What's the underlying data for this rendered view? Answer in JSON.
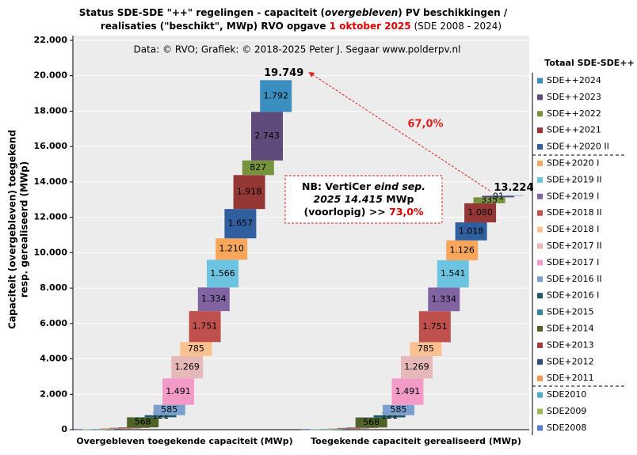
{
  "chart_data": {
    "type": "cascade",
    "title": [
      "Status SDE-SDE \"++\" regelingen - capaciteit (",
      "overgebleven",
      ") PV beschikkingen  /",
      "realisaties (\"beschikt\", MWp) RVO opgave ",
      "1 oktober 2025",
      " (SDE 2008 - 2024)"
    ],
    "subtitle": "Data: © RVO;  Grafiek:  © 2018-2025 Peter J. Segaar www.polderpv.nl",
    "y_label": [
      "Capaciteit (overgebleven) toegekend",
      "resp. gerealiseerd (MWp)"
    ],
    "legend_title": "Totaal SDE-SDE++",
    "legend": "right",
    "categories": [
      "Overgebleven toegekende capaciteit (MWp)",
      "Toegekende capaciteit gerealiseerd (MWp)"
    ],
    "ylim": [
      0,
      22000
    ],
    "yticks": [
      0,
      {
        "value": 2000,
        "label": "2.000"
      },
      {
        "value": 4000,
        "label": "4.000"
      },
      {
        "value": 6000,
        "label": "6.000"
      },
      {
        "value": 8000,
        "label": "8.000"
      },
      {
        "value": 10000,
        "label": "10.000"
      },
      {
        "value": 12000,
        "label": "12.000"
      },
      {
        "value": 14000,
        "label": "14.000"
      },
      {
        "value": 16000,
        "label": "16.000"
      },
      {
        "value": 18000,
        "label": "18.000"
      },
      {
        "value": 20000,
        "label": "20.000"
      },
      {
        "value": 22000,
        "label": "22.000"
      }
    ],
    "series": [
      {
        "name": "SDE2008",
        "color": "#5b7fcf",
        "values": [
          5,
          5
        ],
        "value_labels": [
          null,
          null
        ]
      },
      {
        "name": "SDE2009",
        "color": "#9bbb59",
        "values": [
          15,
          15
        ],
        "value_labels": [
          null,
          null
        ]
      },
      {
        "name": "SDE2010",
        "color": "#4bacc6",
        "values": [
          20,
          20
        ],
        "value_labels": [
          null,
          null
        ]
      },
      {
        "name": "SDE+2011",
        "color": "#f79646",
        "values": [
          35,
          29
        ],
        "value_labels": [
          null,
          null
        ]
      },
      {
        "name": "SDE+2012",
        "color": "#2c4d75",
        "values": [
          25,
          25
        ],
        "value_labels": [
          null,
          null
        ]
      },
      {
        "name": "SDE+2013",
        "color": "#a33b3b",
        "values": [
          30,
          30
        ],
        "value_labels": [
          null,
          null
        ]
      },
      {
        "name": "SDE+2014",
        "color": "#4f6228",
        "values": [
          568,
          568
        ],
        "value_labels": [
          "568",
          "568"
        ]
      },
      {
        "name": "SDE+2015",
        "color": "#31859c",
        "values": [
          2,
          2
        ],
        "value_labels": [
          null,
          null
        ]
      },
      {
        "name": "SDE+2016 I",
        "color": "#215968",
        "values": [
          121,
          121
        ],
        "value_labels": [
          "121",
          "121"
        ]
      },
      {
        "name": "SDE+2016 II",
        "color": "#7ba0cd",
        "values": [
          585,
          585
        ],
        "value_labels": [
          "585",
          "585"
        ]
      },
      {
        "name": "SDE+2017 I",
        "color": "#f49ac8",
        "values": [
          1491,
          1491
        ],
        "value_labels": [
          "1.491",
          "1.491"
        ]
      },
      {
        "name": "SDE+2017 II",
        "color": "#e6b9b8",
        "values": [
          1269,
          1269
        ],
        "value_labels": [
          "1.269",
          "1.269"
        ]
      },
      {
        "name": "SDE+2018 I",
        "color": "#fac090",
        "values": [
          785,
          785
        ],
        "value_labels": [
          "785",
          "785"
        ]
      },
      {
        "name": "SDE+2018 II",
        "color": "#c0504d",
        "values": [
          1751,
          1751
        ],
        "value_labels": [
          "1.751",
          "1.751"
        ]
      },
      {
        "name": "SDE+2019 I",
        "color": "#8064a2",
        "values": [
          1334,
          1334
        ],
        "value_labels": [
          "1.334",
          "1.334"
        ]
      },
      {
        "name": "SDE+2019 II",
        "color": "#6cc4e0",
        "values": [
          1566,
          1541
        ],
        "value_labels": [
          "1.566",
          "1.541"
        ]
      },
      {
        "name": "SDE+2020 I",
        "color": "#f8a65c",
        "values": [
          1210,
          1126
        ],
        "value_labels": [
          "1.210",
          "1.126"
        ]
      },
      {
        "name": "SDE++2020 II",
        "color": "#2f5f9f",
        "values": [
          1657,
          1018
        ],
        "value_labels": [
          "1.657",
          "1.018"
        ]
      },
      {
        "name": "SDE++2021",
        "color": "#953735",
        "values": [
          1918,
          1080
        ],
        "value_labels": [
          "1.918",
          "1.080"
        ]
      },
      {
        "name": "SDE++2022",
        "color": "#77933c",
        "values": [
          827,
          335
        ],
        "value_labels": [
          "827",
          "335"
        ]
      },
      {
        "name": "SDE++2023",
        "color": "#604a7b",
        "values": [
          2743,
          91
        ],
        "value_labels": [
          "2.743",
          "91"
        ]
      },
      {
        "name": "SDE++2024",
        "color": "#3a8fc0",
        "values": [
          1792,
          3
        ],
        "value_labels": [
          "1.792",
          null
        ]
      }
    ],
    "totals": [
      {
        "value": 19749,
        "label": "19.749"
      },
      {
        "value": 13224,
        "label": "13.224"
      }
    ],
    "ratio_label": "67,0%",
    "note": [
      [
        "NB: VertiCer ",
        "eind sep."
      ],
      [
        "2025 14.415",
        " MWp"
      ],
      [
        "(voorlopig)  >> ",
        "73,0%"
      ]
    ]
  }
}
